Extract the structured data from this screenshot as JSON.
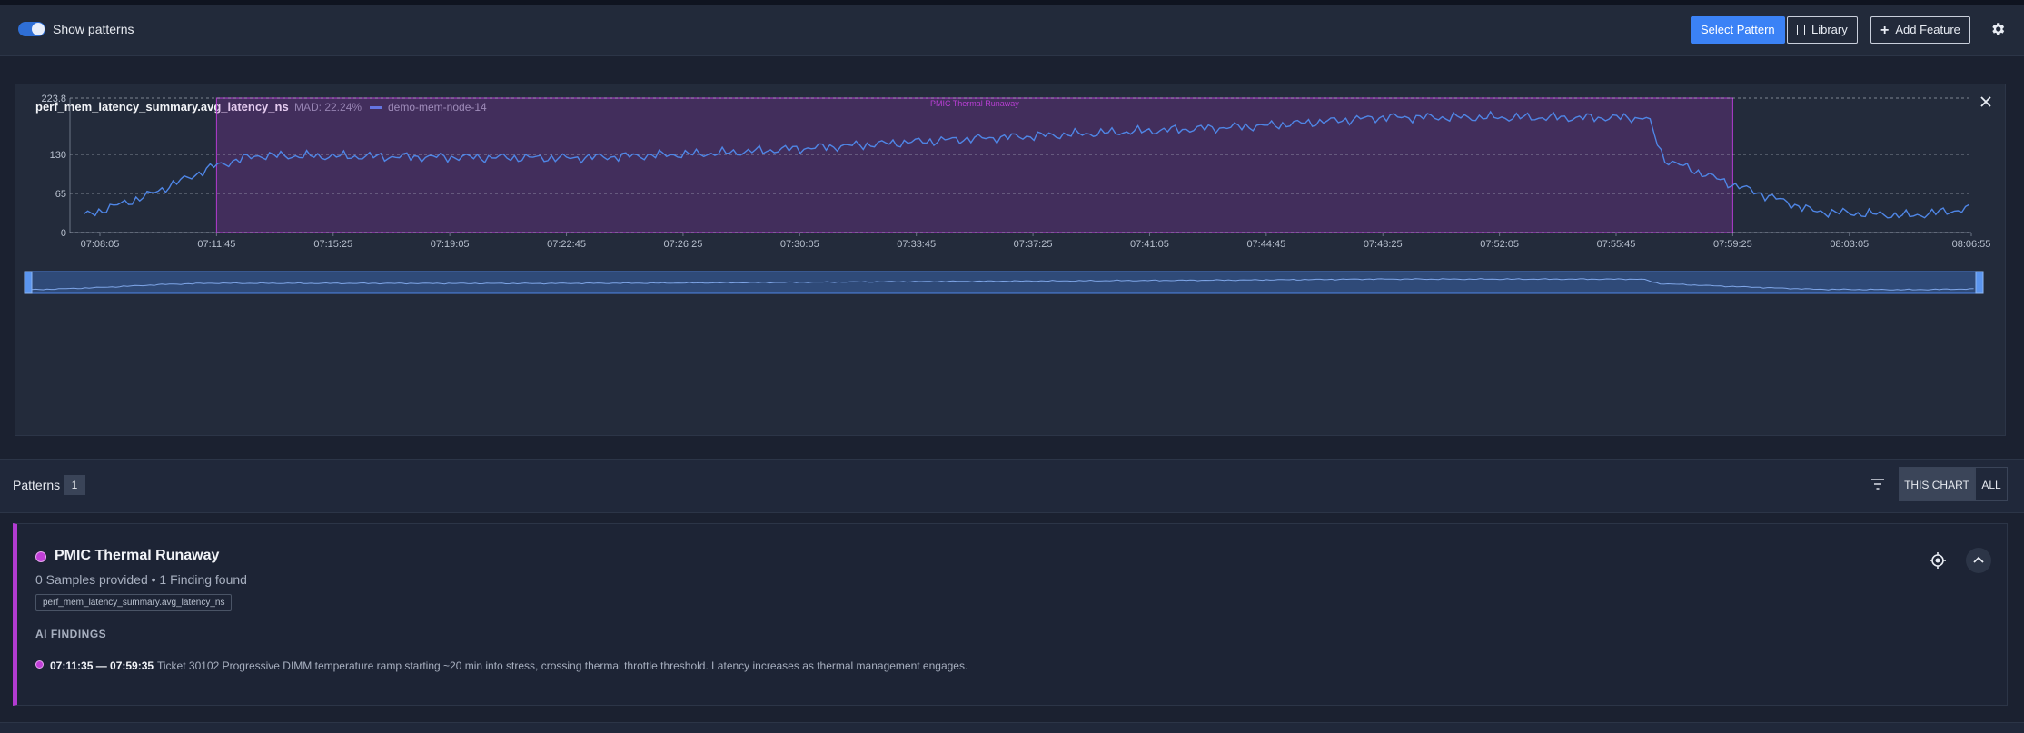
{
  "toolbar": {
    "show_patterns_label": "Show patterns",
    "show_patterns_on": true,
    "select_pattern_label": "Select Pattern",
    "library_label": "Library",
    "add_feature_label": "Add Feature",
    "settings_icon": "gear-icon"
  },
  "chart_card": {
    "title": "perf_mem_latency_summary.avg_latency_ns",
    "mad": "MAD: 22.24%",
    "close_icon": "close-icon"
  },
  "chart_data": {
    "type": "line",
    "y_ticks": [
      "0",
      "65",
      "130",
      "223.8"
    ],
    "y_tick_values": [
      0,
      65,
      130,
      223.8
    ],
    "ylim": [
      0,
      223.8
    ],
    "x_ticks": [
      "07:08:05",
      "07:11:45",
      "07:15:25",
      "07:19:05",
      "07:22:45",
      "07:26:25",
      "07:30:05",
      "07:33:45",
      "07:37:25",
      "07:41:05",
      "07:44:45",
      "07:48:25",
      "07:52:05",
      "07:55:45",
      "07:59:25",
      "08:03:05",
      "08:06:55"
    ],
    "x_range_seconds": [
      0,
      3530
    ],
    "series": [
      {
        "name": "demo-mem-node-14",
        "color": "#4f86e6",
        "x_start": "07:07:35",
        "x_end": "08:06:55",
        "anchors": [
          {
            "t": "07:07:35",
            "v": 28
          },
          {
            "t": "07:09:30",
            "v": 60
          },
          {
            "t": "07:11:45",
            "v": 112
          },
          {
            "t": "07:13:00",
            "v": 128
          },
          {
            "t": "07:22:45",
            "v": 124
          },
          {
            "t": "07:27:30",
            "v": 132
          },
          {
            "t": "07:35:00",
            "v": 155
          },
          {
            "t": "07:44:45",
            "v": 178
          },
          {
            "t": "07:48:25",
            "v": 192
          },
          {
            "t": "07:56:45",
            "v": 191
          },
          {
            "t": "07:57:15",
            "v": 122
          },
          {
            "t": "07:59:25",
            "v": 80
          },
          {
            "t": "08:02:00",
            "v": 35
          },
          {
            "t": "08:05:00",
            "v": 28
          },
          {
            "t": "08:06:55",
            "v": 40
          }
        ]
      }
    ],
    "annotation": {
      "label": "PMIC Thermal Runaway",
      "start": "07:11:45",
      "end": "07:59:25",
      "color": "#b23bd0"
    },
    "grid": true,
    "legend": "top-left",
    "minimap": true
  },
  "patterns": {
    "label": "Patterns",
    "count": "1",
    "filter_icon": "filter-icon",
    "scope_this_chart": "THIS CHART",
    "scope_all": "ALL",
    "items": [
      {
        "name": "PMIC Thermal Runaway",
        "color": "#c13fd8",
        "subtitle": "0 Samples provided • 1 Finding found",
        "tag": "perf_mem_latency_summary.avg_latency_ns",
        "ai_header": "AI FINDINGS",
        "findings": [
          {
            "time_range": "07:11:35 — 07:59:35",
            "text": "Ticket 30102 Progressive DIMM temperature ramp starting ~20 min into stress, crossing thermal throttle threshold. Latency increases as thermal management engages."
          }
        ]
      }
    ]
  }
}
